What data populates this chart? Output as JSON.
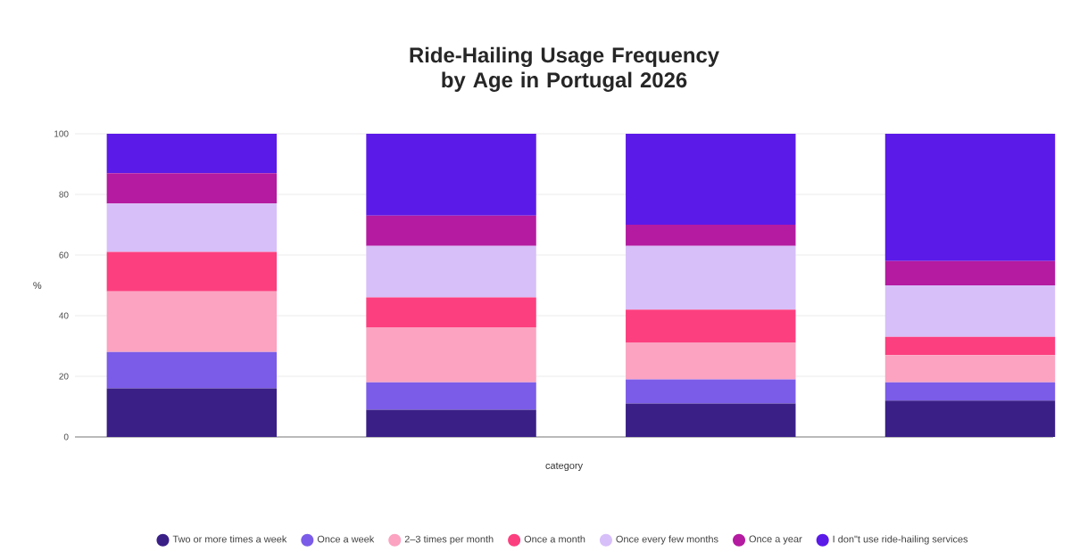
{
  "chart_data": {
    "type": "bar",
    "stacked": true,
    "title": "Ride-Hailing Usage Frequency by Age in Portugal 2026",
    "xlabel": "category",
    "ylabel": "%",
    "categories": [
      null,
      null,
      null,
      null
    ],
    "ylim": [
      0,
      100
    ],
    "yticks": [
      0,
      20,
      40,
      60,
      80,
      100
    ],
    "grid": "y",
    "legend": "bottom",
    "marker": "circle",
    "series": [
      {
        "name": "Two or more times a week",
        "color": "#3a1f87",
        "values": [
          16,
          9,
          11,
          12
        ]
      },
      {
        "name": "Once a week",
        "color": "#7b5ce8",
        "values": [
          12,
          9,
          8,
          6
        ]
      },
      {
        "name": "2–3 times per month",
        "color": "#fba3c1",
        "values": [
          20,
          18,
          12,
          9
        ]
      },
      {
        "name": "Once a month",
        "color": "#fc3f7f",
        "values": [
          13,
          10,
          11,
          6
        ]
      },
      {
        "name": "Once every few months",
        "color": "#d7bff9",
        "values": [
          16,
          17,
          21,
          17
        ]
      },
      {
        "name": "Once a year",
        "color": "#b41ba0",
        "values": [
          10,
          10,
          7,
          8
        ]
      },
      {
        "name": "I don\"t use ride-hailing services",
        "color": "#5b1ae8",
        "values": [
          13,
          27,
          30,
          42
        ]
      }
    ]
  }
}
